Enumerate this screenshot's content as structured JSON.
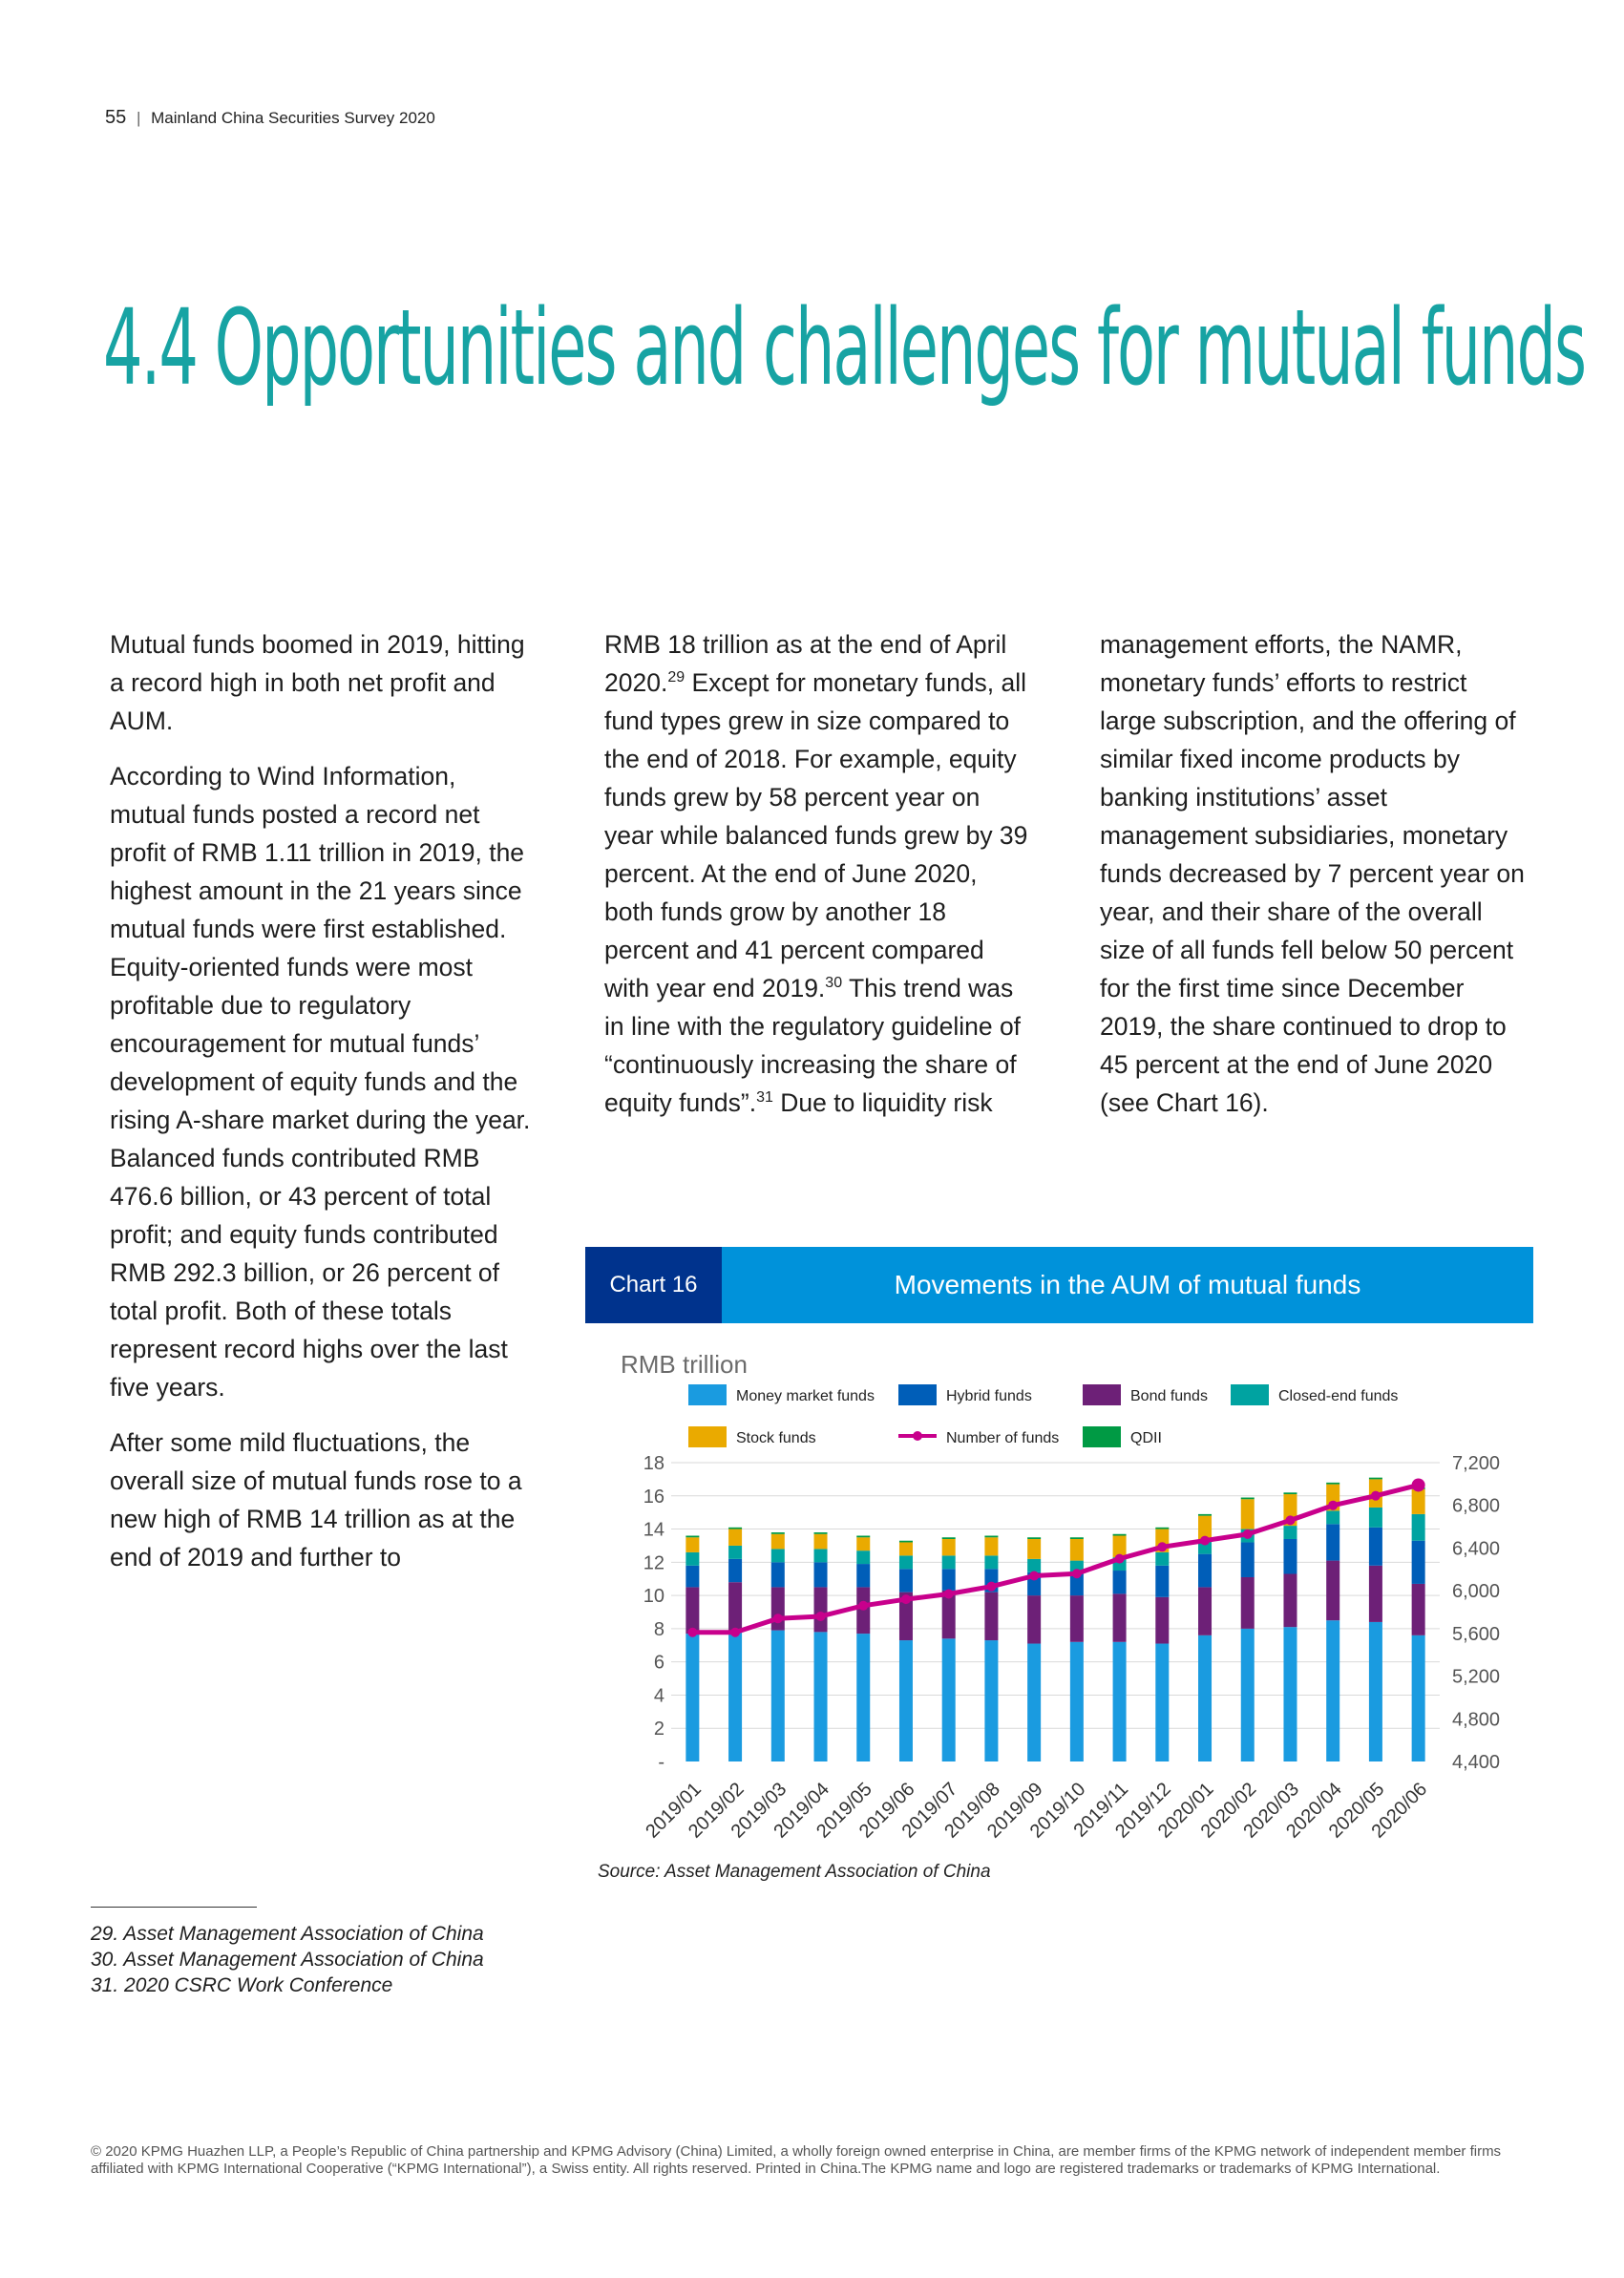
{
  "header": {
    "page_number": "55",
    "separator": "|",
    "publication": "Mainland China Securities Survey 2020"
  },
  "title": "4.4 Opportunities and challenges for mutual funds",
  "columns": [
    {
      "paragraphs": [
        {
          "text": "Mutual funds boomed in 2019, hitting a record high in both net profit and AUM."
        },
        {
          "text": "According to Wind Information, mutual funds posted a record net profit of RMB 1.11 trillion in 2019, the highest amount in the 21 years since mutual funds were first established. Equity-oriented funds were most profitable due to regulatory encouragement for mutual funds’ development of equity funds and the rising A-share market during the year. Balanced funds contributed RMB 476.6 billion, or 43 percent of total profit; and equity funds contributed RMB 292.3 billion, or 26 percent of total profit. Both of these totals represent record highs over the last five years."
        },
        {
          "text": "After some mild fluctuations, the overall size of mutual funds rose to a new high of RMB 14 trillion as at the end of 2019 and further to"
        }
      ]
    },
    {
      "paragraphs": [
        {
          "t1": "RMB 18 trillion as at the end of April 2020.",
          "s1": "29",
          "t2": " Except for monetary funds, all fund types grew in size compared to the end of 2018. For example, equity funds grew by 58 percent year on year while balanced funds grew by 39 percent. At the end of June 2020, both funds grow by another 18 percent and 41 percent compared with year end 2019.",
          "s2": "30",
          "t3": " This trend was in line with the regulatory guideline of “continuously increasing the share of equity funds”.",
          "s3": "31",
          "t4": " Due to liquidity risk"
        }
      ]
    },
    {
      "paragraphs": [
        {
          "text": "management efforts, the NAMR, monetary funds’ efforts to restrict large subscription, and the offering of similar fixed income products by banking institutions’ asset management subsidiaries, monetary funds decreased by 7 percent year on year, and their share of the overall size of all funds fell below 50 percent for the first time since December 2019, the share continued to drop to 45 percent at the end of June 2020 (see Chart 16)."
        }
      ]
    }
  ],
  "chart_header": {
    "number": "Chart 16",
    "title": "Movements in the AUM of mutual funds"
  },
  "chart_data": {
    "type": "bar",
    "stacked": true,
    "unit_label": "RMB trillion",
    "categories": [
      "2019/01",
      "2019/02",
      "2019/03",
      "2019/04",
      "2019/05",
      "2019/06",
      "2019/07",
      "2019/08",
      "2019/09",
      "2019/10",
      "2019/11",
      "2019/12",
      "2020/01",
      "2020/02",
      "2020/03",
      "2020/04",
      "2020/05",
      "2020/06"
    ],
    "series": [
      {
        "name": "Money market funds",
        "color": "#1a9be0",
        "values": [
          7.7,
          7.8,
          7.9,
          7.8,
          7.7,
          7.3,
          7.4,
          7.3,
          7.1,
          7.2,
          7.2,
          7.1,
          7.6,
          8.0,
          8.1,
          8.5,
          8.4,
          7.6
        ]
      },
      {
        "name": "Bond funds",
        "color": "#6d2077",
        "values": [
          2.8,
          3.0,
          2.6,
          2.7,
          2.8,
          2.9,
          2.9,
          2.9,
          2.9,
          2.8,
          2.9,
          2.8,
          2.9,
          3.1,
          3.2,
          3.6,
          3.4,
          3.1
        ]
      },
      {
        "name": "Hybrid funds",
        "color": "#005eb8",
        "values": [
          1.3,
          1.4,
          1.5,
          1.5,
          1.4,
          1.4,
          1.3,
          1.4,
          1.4,
          1.3,
          1.4,
          1.9,
          2.0,
          2.1,
          2.1,
          2.2,
          2.3,
          2.6
        ]
      },
      {
        "name": "Closed-end funds",
        "color": "#00a3a1",
        "values": [
          0.8,
          0.8,
          0.8,
          0.8,
          0.8,
          0.8,
          0.8,
          0.8,
          0.8,
          0.8,
          0.8,
          0.8,
          0.8,
          0.8,
          0.8,
          0.8,
          1.2,
          1.6
        ]
      },
      {
        "name": "Stock funds",
        "color": "#eaaa00",
        "values": [
          0.9,
          1.0,
          0.9,
          0.9,
          0.8,
          0.8,
          1.0,
          1.1,
          1.2,
          1.3,
          1.3,
          1.4,
          1.5,
          1.8,
          1.9,
          1.6,
          1.7,
          1.5
        ]
      },
      {
        "name": "QDII",
        "color": "#009a44",
        "values": [
          0.1,
          0.1,
          0.1,
          0.1,
          0.1,
          0.1,
          0.1,
          0.1,
          0.1,
          0.1,
          0.1,
          0.1,
          0.1,
          0.1,
          0.1,
          0.1,
          0.1,
          0.1
        ]
      }
    ],
    "line": {
      "name": "Number of funds",
      "color": "#c8008c",
      "values": [
        5610,
        5610,
        5740,
        5760,
        5860,
        5920,
        5970,
        6040,
        6140,
        6160,
        6300,
        6410,
        6470,
        6530,
        6660,
        6800,
        6890,
        6990
      ]
    },
    "y_left": {
      "min": 0,
      "max": 18,
      "ticks": [
        0,
        2,
        4,
        6,
        8,
        10,
        12,
        14,
        16,
        18
      ],
      "tick_labels": [
        "-",
        "2",
        "4",
        "6",
        "8",
        "10",
        "12",
        "14",
        "16",
        "18"
      ]
    },
    "y_right": {
      "min": 4400,
      "max": 7200,
      "ticks": [
        4400,
        4800,
        5200,
        5600,
        6000,
        6400,
        6800,
        7200
      ],
      "tick_labels": [
        "4,400",
        "4,800",
        "5,200",
        "5,600",
        "6,000",
        "6,400",
        "6,800",
        "7,200"
      ]
    },
    "legend_order": [
      "Money market funds",
      "Hybrid funds",
      "Bond funds",
      "Closed-end funds",
      "Stock funds",
      "Number of funds",
      "QDII"
    ],
    "legend_placement": "top",
    "grid": true
  },
  "chart_source": "Source: Asset Management Association of China",
  "footnotes": [
    "29. Asset Management Association of China",
    "30. Asset Management Association of China",
    "31. 2020 CSRC Work Conference"
  ],
  "footer": "© 2020 KPMG Huazhen LLP, a People’s Republic of China partnership and KPMG Advisory (China) Limited, a wholly foreign owned enterprise in China, are member firms of the KPMG network of independent member firms affiliated with KPMG International Cooperative (“KPMG International”), a Swiss entity. All rights reserved. Printed in China.The KPMG name and logo are registered trademarks or trademarks of KPMG International."
}
